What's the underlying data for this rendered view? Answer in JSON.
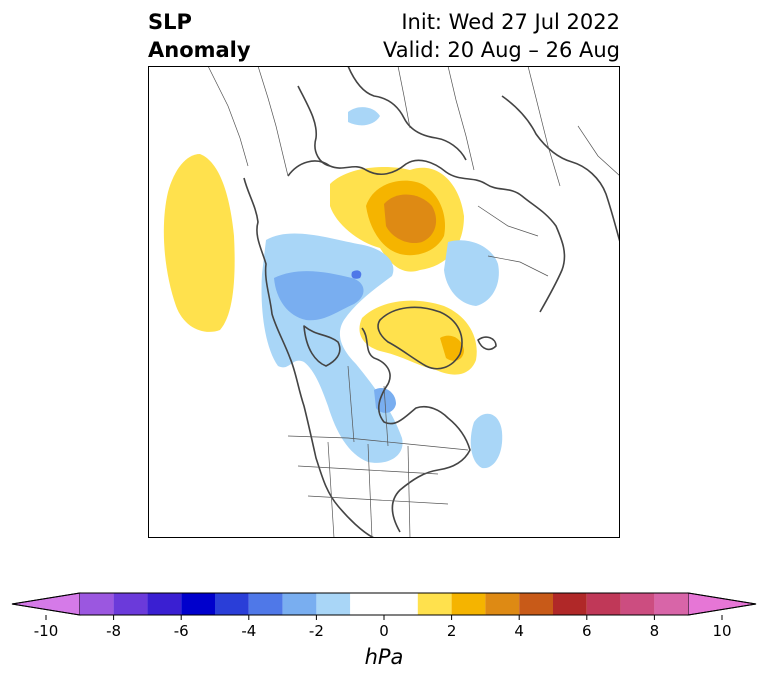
{
  "title": {
    "line1": "SLP",
    "line2": "Anomaly",
    "init": "Init: Wed 27 Jul 2022",
    "valid": "Valid: 20 Aug – 26 Aug"
  },
  "colorbar": {
    "units": "hPa",
    "ticks": [
      "-10",
      "-8",
      "-6",
      "-4",
      "-2",
      "0",
      "2",
      "4",
      "6",
      "8",
      "10"
    ],
    "tick_values": [
      -10,
      -8,
      -6,
      -4,
      -2,
      0,
      2,
      4,
      6,
      8,
      10
    ],
    "colors": [
      "#d57ae8",
      "#9b57e0",
      "#6b3ada",
      "#3a1fd2",
      "#0000cc",
      "#2a3ed8",
      "#4f78e8",
      "#79aef0",
      "#a9d6f7",
      "#ffffff",
      "#ffe14d",
      "#f5b400",
      "#de8a14",
      "#c85a18",
      "#b02828",
      "#c03858",
      "#cc4d80",
      "#d865a8",
      "#e676d6"
    ],
    "extend": "both"
  },
  "map": {
    "projection": "polar stereographic (North America / Arctic)",
    "field": "SLP anomaly"
  }
}
